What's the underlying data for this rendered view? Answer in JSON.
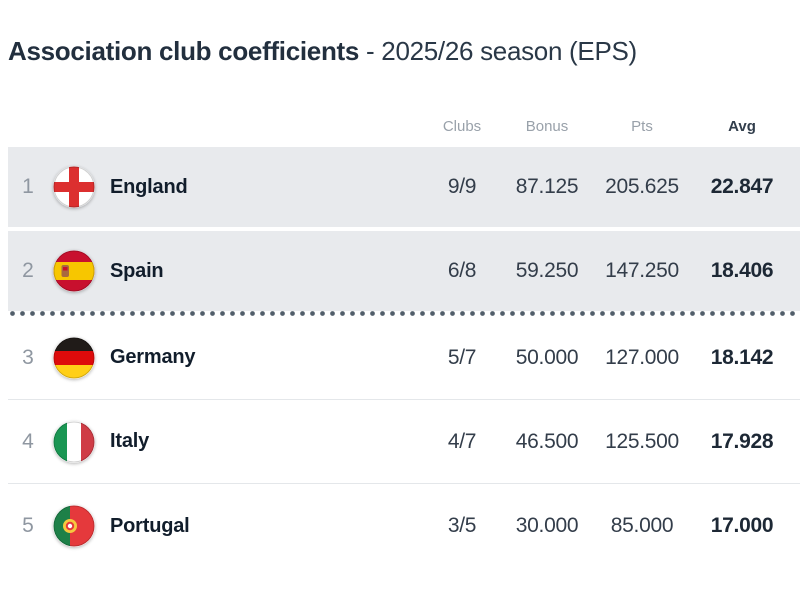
{
  "title": {
    "main": "Association club coefficients",
    "suffix": "- 2025/26 season (EPS)"
  },
  "table": {
    "columns": {
      "clubs": "Clubs",
      "bonus": "Bonus",
      "pts": "Pts",
      "avg": "Avg"
    },
    "rows": [
      {
        "rank": "1",
        "country": "England",
        "flag": "england",
        "clubs": "9/9",
        "bonus": "87.125",
        "pts": "205.625",
        "avg": "22.847",
        "highlighted": true
      },
      {
        "rank": "2",
        "country": "Spain",
        "flag": "spain",
        "clubs": "6/8",
        "bonus": "59.250",
        "pts": "147.250",
        "avg": "18.406",
        "highlighted": true
      },
      {
        "rank": "3",
        "country": "Germany",
        "flag": "germany",
        "clubs": "5/7",
        "bonus": "50.000",
        "pts": "127.000",
        "avg": "18.142",
        "highlighted": false
      },
      {
        "rank": "4",
        "country": "Italy",
        "flag": "italy",
        "clubs": "4/7",
        "bonus": "46.500",
        "pts": "125.500",
        "avg": "17.928",
        "highlighted": false
      },
      {
        "rank": "5",
        "country": "Portugal",
        "flag": "portugal",
        "clubs": "3/5",
        "bonus": "30.000",
        "pts": "85.000",
        "avg": "17.000",
        "highlighted": false
      }
    ],
    "dotted_divider_after_rank": 2
  },
  "colors": {
    "highlight_row_bg": "#e8eaed",
    "dotted_divider": "#515e6a",
    "title_text": "#222f3e",
    "header_label": "#99a1aa"
  }
}
